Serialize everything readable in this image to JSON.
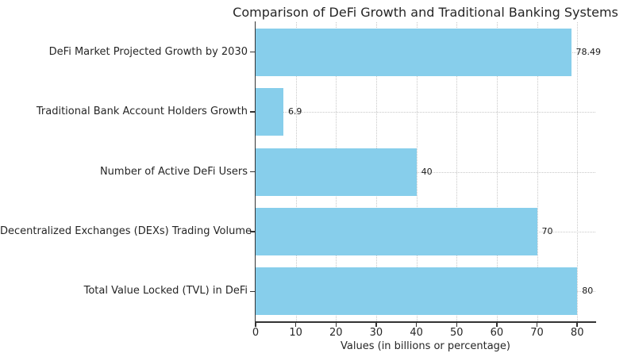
{
  "chart_data": {
    "type": "bar",
    "orientation": "horizontal",
    "title": "Comparison of DeFi Growth and Traditional Banking Systems",
    "categories": [
      "DeFi Market Projected Growth by 2030",
      "Traditional Bank Account Holders Growth",
      "Number of Active DeFi Users",
      "Decentralized Exchanges (DEXs) Trading Volume",
      "Total Value Locked (TVL) in DeFi"
    ],
    "values": [
      78.49,
      6.9,
      40,
      70,
      80
    ],
    "value_labels": [
      "78.49",
      "6.9",
      "40",
      "70",
      "80"
    ],
    "xlabel": "Values (in billions or percentage)",
    "ylabel": "",
    "x_ticks": [
      0,
      10,
      20,
      30,
      40,
      50,
      60,
      70,
      80
    ],
    "xlim": [
      0,
      84.5
    ],
    "grid": "dotted, both axes, behind bars",
    "legend": "none",
    "bar_color": "#87CEEB",
    "text_color": "#262626",
    "grid_color": "#c8c8c8",
    "spine_color": "#333333"
  }
}
